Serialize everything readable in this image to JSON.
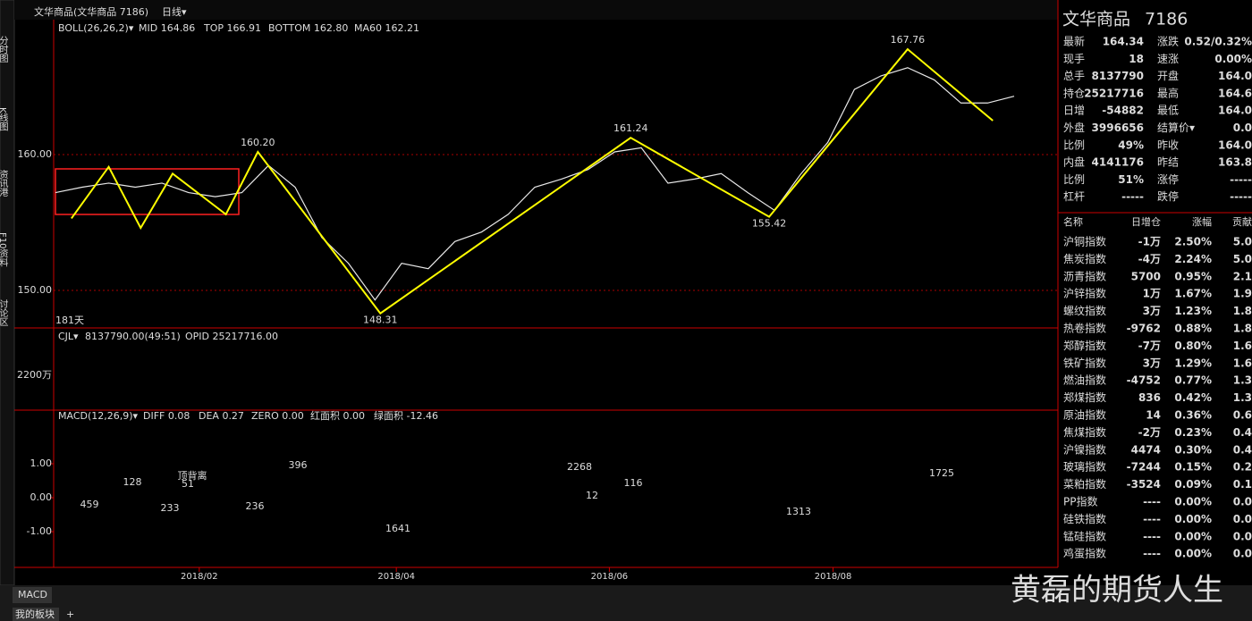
{
  "header": {
    "title": "文华商品(文华商品 7186)",
    "period": "日线▾"
  },
  "sidebar": [
    "分时图",
    "K线图",
    "资讯港",
    "F10资料",
    "讨论区"
  ],
  "chart_data": {
    "type": "line",
    "xlim": [
      0,
      181
    ],
    "ylim": [
      147.37,
      169.74
    ],
    "yticks": [
      {
        "value": 150,
        "label": "150.00"
      },
      {
        "value": 160,
        "label": "160.00"
      }
    ],
    "xticks": [
      {
        "value": 27,
        "label": "2018/02"
      },
      {
        "value": 64,
        "label": "2018/04"
      },
      {
        "value": 104,
        "label": "2018/06"
      },
      {
        "value": 146,
        "label": "2018/08"
      }
    ],
    "days_label": "181天",
    "indicators": [
      "BOLL(26,26,2)▾",
      "MID 164.86",
      "TOP 166.91",
      "BOTTOM 162.80",
      "MA60 162.21"
    ],
    "series": [
      {
        "color": "#e8e8e8",
        "x": [
          0,
          5,
          10,
          15,
          20,
          25,
          30,
          35,
          40,
          45,
          50,
          55,
          60,
          65,
          70,
          75,
          80,
          85,
          90,
          95,
          100,
          105,
          110,
          115,
          120,
          125,
          130,
          135,
          140,
          145,
          150,
          155,
          160,
          165,
          170,
          175,
          180
        ],
        "values": [
          157.2,
          157.6,
          157.9,
          157.6,
          157.9,
          157.2,
          156.9,
          157.2,
          159.2,
          157.6,
          153.9,
          152.0,
          149.3,
          152.0,
          151.6,
          153.6,
          154.3,
          155.6,
          157.6,
          158.2,
          158.9,
          160.2,
          160.5,
          157.9,
          158.2,
          158.6,
          157.2,
          155.9,
          158.6,
          160.9,
          164.8,
          165.8,
          166.4,
          165.5,
          163.8,
          163.8,
          164.3
        ]
      },
      {
        "color": "#ffff00",
        "x": [
          3,
          10,
          16,
          22,
          32,
          38,
          61,
          108,
          134,
          160,
          176
        ],
        "values": [
          155.3,
          159.1,
          154.6,
          158.6,
          155.6,
          160.2,
          148.31,
          161.24,
          155.42,
          167.76,
          162.5
        ]
      }
    ],
    "annotations": [
      {
        "x": 38,
        "value": 160.2,
        "label": "160.20",
        "color": "#ff4040"
      },
      {
        "x": 61,
        "value": 148.31,
        "label": "148.31",
        "color": "#00e5ff"
      },
      {
        "x": 108,
        "value": 161.24,
        "label": "161.24",
        "color": "#ff4040"
      },
      {
        "x": 134,
        "value": 155.42,
        "label": "155.42",
        "color": "#00e5ff"
      },
      {
        "x": 160,
        "value": 167.76,
        "label": "167.76",
        "color": "#ff4040"
      }
    ]
  },
  "volume": {
    "header": [
      "CJL▾",
      "8137790.00(49:51)",
      "OPID 25217716.00"
    ],
    "ytick_label": "2200万"
  },
  "macd": {
    "header": [
      "MACD(12,26,9)▾",
      "DIFF 0.08",
      "DEA 0.27",
      "ZERO 0.00",
      "红面积 0.00",
      "绿面积 -12.46"
    ],
    "ylim": [
      -1.92,
      2.5
    ],
    "yticks": [
      {
        "value": 1,
        "label": "1.00"
      },
      {
        "value": 0,
        "label": "0.00"
      },
      {
        "value": -1,
        "label": "-1.00"
      }
    ],
    "annotations": [
      "459",
      "128",
      "顶背离",
      "51",
      "233",
      "236",
      "396",
      "1641",
      "2268",
      "12",
      "116",
      "1313",
      "1725"
    ]
  },
  "quote": {
    "name": "文华商品",
    "code": "7186",
    "rows": [
      [
        "最新",
        "164.34",
        "涨跌",
        "0.52/0.32%"
      ],
      [
        "现手",
        "18",
        "速涨",
        "0.00%"
      ],
      [
        "总手",
        "8137790",
        "开盘",
        "164.0"
      ],
      [
        "持仓",
        "25217716",
        "最高",
        "164.6"
      ],
      [
        "日增",
        "-54882",
        "最低",
        "164.0"
      ],
      [
        "外盘",
        "3996656",
        "结算价▾",
        "0.0"
      ],
      [
        "比例",
        "49%",
        "昨收",
        "164.0"
      ],
      [
        "内盘",
        "4141176",
        "昨结",
        "163.8"
      ],
      [
        "比例",
        "51%",
        "涨停",
        "-----"
      ],
      [
        "杠杆",
        "-----",
        "跌停",
        "-----"
      ]
    ]
  },
  "index_table": {
    "header": [
      "名称",
      "日增仓",
      "涨幅",
      "贡献"
    ],
    "rows": [
      [
        "沪铜指数",
        "-1万",
        "2.50%",
        "5.0"
      ],
      [
        "焦炭指数",
        "-4万",
        "2.24%",
        "5.0"
      ],
      [
        "沥青指数",
        "5700",
        "0.95%",
        "2.1"
      ],
      [
        "沪锌指数",
        "1万",
        "1.67%",
        "1.9"
      ],
      [
        "螺纹指数",
        "3万",
        "1.23%",
        "1.8"
      ],
      [
        "热卷指数",
        "-9762",
        "0.88%",
        "1.8"
      ],
      [
        "郑醇指数",
        "-7万",
        "0.80%",
        "1.6"
      ],
      [
        "铁矿指数",
        "3万",
        "1.29%",
        "1.6"
      ],
      [
        "燃油指数",
        "-4752",
        "0.77%",
        "1.3"
      ],
      [
        "郑煤指数",
        "836",
        "0.42%",
        "1.3"
      ],
      [
        "原油指数",
        "14",
        "0.36%",
        "0.6"
      ],
      [
        "焦煤指数",
        "-2万",
        "0.23%",
        "0.4"
      ],
      [
        "沪镍指数",
        "4474",
        "0.30%",
        "0.4"
      ],
      [
        "玻璃指数",
        "-7244",
        "0.15%",
        "0.2"
      ],
      [
        "菜粕指数",
        "-3524",
        "0.09%",
        "0.1"
      ],
      [
        "PP指数",
        "----",
        "0.00%",
        "0.0"
      ],
      [
        "硅铁指数",
        "----",
        "0.00%",
        "0.0"
      ],
      [
        "锰硅指数",
        "----",
        "0.00%",
        "0.0"
      ],
      [
        "鸡蛋指数",
        "----",
        "0.00%",
        "0.0"
      ]
    ]
  },
  "tabs": [
    "MACD"
  ],
  "bottom_tabs": [
    "我的板块",
    "+"
  ],
  "watermark": "黄磊的期货人生"
}
